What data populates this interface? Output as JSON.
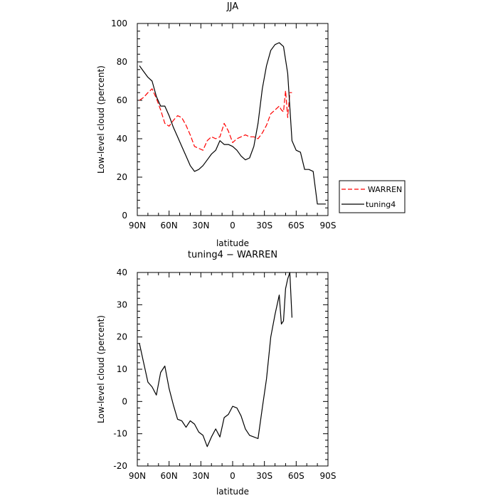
{
  "chart_data": [
    {
      "type": "line",
      "title": "JJA",
      "xlabel": "latitude",
      "ylabel": "Low-level cloud (percent)",
      "xlim": [
        90,
        -90
      ],
      "ylim": [
        0,
        100
      ],
      "xticks": [
        {
          "value": 90,
          "label": "90N"
        },
        {
          "value": 60,
          "label": "60N"
        },
        {
          "value": 30,
          "label": "30N"
        },
        {
          "value": 0,
          "label": "0"
        },
        {
          "value": -30,
          "label": "30S"
        },
        {
          "value": -60,
          "label": "60S"
        },
        {
          "value": -90,
          "label": "90S"
        }
      ],
      "yticks": [
        0,
        20,
        40,
        60,
        80,
        100
      ],
      "legend_position": "right",
      "series": [
        {
          "name": "WARREN",
          "color": "#ff0000",
          "dash": "dashed",
          "x": [
            88,
            84,
            80,
            76,
            72,
            68,
            64,
            60,
            56,
            52,
            48,
            44,
            40,
            36,
            32,
            28,
            24,
            20,
            16,
            12,
            8,
            4,
            0,
            -4,
            -8,
            -12,
            -16,
            -20,
            -24,
            -28,
            -32,
            -36,
            -40,
            -44,
            -46,
            -48,
            -50,
            -52,
            -54,
            -56
          ],
          "y": [
            60,
            61.5,
            64,
            66,
            61,
            55,
            48,
            46.5,
            49.5,
            52,
            51,
            47,
            42,
            36,
            35,
            34,
            39,
            41,
            40,
            41,
            48,
            44,
            38,
            40,
            41,
            42,
            41,
            41,
            40,
            43,
            47,
            53,
            55,
            57,
            55,
            54,
            65,
            51,
            64,
            64
          ]
        },
        {
          "name": "tuning4",
          "color": "#000000",
          "dash": "solid",
          "x": [
            88,
            84,
            80,
            76,
            72,
            68,
            64,
            60,
            56,
            52,
            48,
            44,
            40,
            36,
            32,
            28,
            24,
            20,
            16,
            12,
            8,
            4,
            0,
            -4,
            -8,
            -12,
            -16,
            -20,
            -24,
            -28,
            -32,
            -36,
            -40,
            -44,
            -48,
            -52,
            -56,
            -60,
            -64,
            -68,
            -72,
            -76,
            -80,
            -84,
            -88
          ],
          "y": [
            78,
            75,
            72,
            70,
            62,
            57,
            57,
            52,
            46,
            41,
            36,
            31,
            26,
            23,
            24,
            26,
            29,
            32,
            34,
            39,
            37,
            37,
            36,
            34,
            31,
            29,
            30,
            36,
            48,
            66,
            78,
            86,
            89,
            90,
            88,
            74,
            39,
            34,
            33,
            24,
            24,
            23,
            6,
            6,
            6
          ]
        }
      ]
    },
    {
      "type": "line",
      "title": "tuning4 − WARREN",
      "xlabel": "latitude",
      "ylabel": "Low-level cloud (percent)",
      "xlim": [
        90,
        -90
      ],
      "ylim": [
        -20,
        40
      ],
      "xticks": [
        {
          "value": 90,
          "label": "90N"
        },
        {
          "value": 60,
          "label": "60N"
        },
        {
          "value": 30,
          "label": "30N"
        },
        {
          "value": 0,
          "label": "0"
        },
        {
          "value": -30,
          "label": "30S"
        },
        {
          "value": -60,
          "label": "60S"
        },
        {
          "value": -90,
          "label": "90S"
        }
      ],
      "yticks": [
        -20,
        -10,
        0,
        10,
        20,
        30,
        40
      ],
      "series": [
        {
          "name": "",
          "color": "#000000",
          "dash": "solid",
          "x": [
            88,
            84,
            80,
            76,
            72,
            68,
            64,
            60,
            56,
            52,
            48,
            44,
            40,
            36,
            32,
            28,
            24,
            20,
            16,
            12,
            8,
            4,
            0,
            -4,
            -8,
            -12,
            -16,
            -20,
            -24,
            -28,
            -32,
            -36,
            -40,
            -44,
            -46,
            -48,
            -50,
            -52,
            -54,
            -56
          ],
          "y": [
            18,
            12,
            6,
            4.5,
            2,
            9,
            11,
            4,
            -1,
            -5.5,
            -6,
            -8,
            -6,
            -7,
            -9.5,
            -10.5,
            -14,
            -11,
            -8.5,
            -11,
            -5,
            -4,
            -1.5,
            -2,
            -4.5,
            -8.5,
            -10.5,
            -11,
            -11.5,
            -2,
            7,
            20,
            27,
            33,
            24,
            25,
            35,
            38,
            40,
            26
          ]
        }
      ]
    }
  ]
}
